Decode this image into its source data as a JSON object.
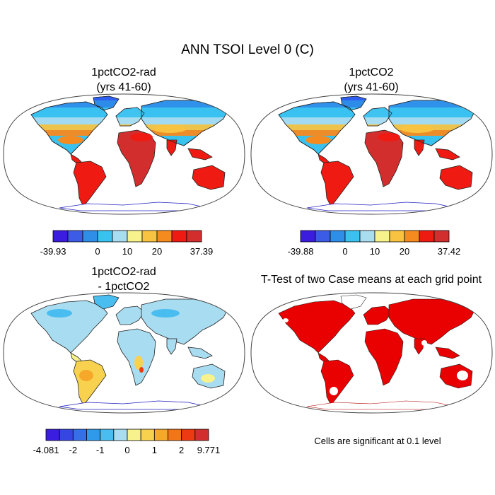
{
  "figure": {
    "title": "ANN TSOI Level 0 (C)"
  },
  "panels": [
    {
      "id": "p1",
      "title_line1": "1pctCO2-rad",
      "title_line2": "(yrs 41-60)",
      "type": "absolute"
    },
    {
      "id": "p2",
      "title_line1": "1pctCO2",
      "title_line2": "(yrs 41-60)",
      "type": "absolute"
    },
    {
      "id": "p3",
      "title_line1": "1pctCO2-rad",
      "title_line2": "- 1pctCO2",
      "type": "difference"
    },
    {
      "id": "p4",
      "title_line1": "T-Test of two Case means at each grid point",
      "title_line2": "",
      "type": "significance"
    }
  ],
  "colorbars": [
    {
      "id": "cb1",
      "colors": [
        "#3b1de0",
        "#3d5ce6",
        "#2e8ee8",
        "#39c2f0",
        "#a8dcf0",
        "#f7f28c",
        "#f8c341",
        "#f58a1e",
        "#ef1b12",
        "#d32e2e"
      ],
      "labels": [
        "-39.93",
        "0",
        "10",
        "20",
        "37.39"
      ],
      "label_slots": [
        0,
        3,
        5,
        7,
        10
      ]
    },
    {
      "id": "cb2",
      "colors": [
        "#3b1de0",
        "#3d5ce6",
        "#2e8ee8",
        "#39c2f0",
        "#a8dcf0",
        "#f7f28c",
        "#f8c341",
        "#f58a1e",
        "#ef1b12",
        "#d32e2e"
      ],
      "labels": [
        "-39.88",
        "0",
        "10",
        "20",
        "37.42"
      ],
      "label_slots": [
        0,
        3,
        5,
        7,
        10
      ]
    },
    {
      "id": "cb3",
      "colors": [
        "#3b1de0",
        "#3646e2",
        "#3570e6",
        "#2f99ea",
        "#49bdf0",
        "#a8dcf0",
        "#f7f28c",
        "#f8d24f",
        "#f6a82a",
        "#f27618",
        "#ee3a12",
        "#d32e2e"
      ],
      "labels": [
        "-4.081",
        "-2",
        "-1",
        "0",
        "1",
        "2",
        "9.771"
      ],
      "label_slots": [
        0,
        2,
        4,
        6,
        8,
        10,
        12
      ]
    }
  ],
  "significance_note": "Cells are significant at 0.1 level"
}
